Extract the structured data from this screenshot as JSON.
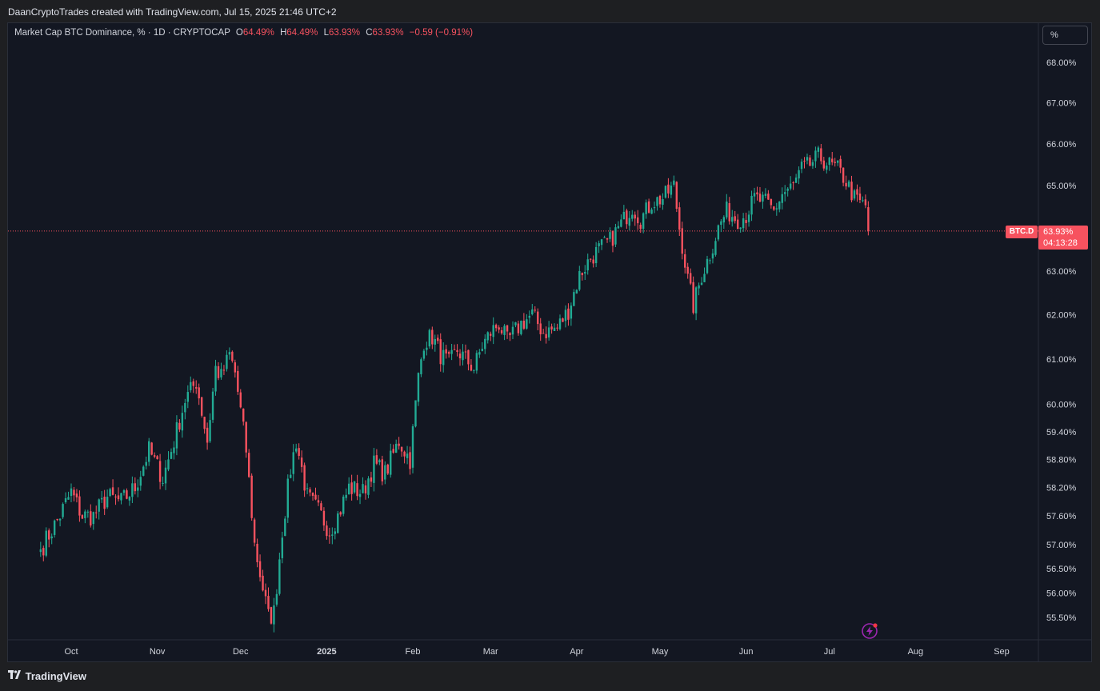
{
  "header": {
    "attribution": "DaanCryptoTrades created with TradingView.com, Jul 15, 2025 21:46 UTC+2"
  },
  "legend": {
    "symbol": "Market Cap BTC Dominance, % · 1D · CRYPTOCAP",
    "open_label": "O",
    "open": "64.49%",
    "high_label": "H",
    "high": "64.49%",
    "low_label": "L",
    "low": "63.93%",
    "close_label": "C",
    "close": "63.93%",
    "change": "−0.59 (−0.91%)"
  },
  "scale_button": "%",
  "price_tag": {
    "symbol": "BTC.D",
    "price": "63.93%",
    "countdown": "04:13:28"
  },
  "footer": {
    "logo_text": "TradingView"
  },
  "colors": {
    "up": "#22ab94",
    "down": "#f7525f",
    "background": "#131722",
    "grid_text": "#d1d4dc"
  },
  "chart_data": {
    "type": "candlestick",
    "title": "Market Cap BTC Dominance, % · 1D · CRYPTOCAP",
    "y_scale": "log",
    "y_ticks": [
      "68.00%",
      "67.00%",
      "66.00%",
      "65.00%",
      "63.00%",
      "62.00%",
      "61.00%",
      "60.00%",
      "59.40%",
      "58.80%",
      "58.20%",
      "57.60%",
      "57.00%",
      "56.50%",
      "56.00%",
      "55.50%"
    ],
    "y_tick_values": [
      68.0,
      67.0,
      66.0,
      65.0,
      63.0,
      62.0,
      61.0,
      60.0,
      59.4,
      58.8,
      58.2,
      57.6,
      57.0,
      56.5,
      56.0,
      55.5
    ],
    "x_ticks": [
      "Oct",
      "Nov",
      "Dec",
      "2025",
      "Feb",
      "Mar",
      "Apr",
      "May",
      "Jun",
      "Jul",
      "Aug",
      "Sep"
    ],
    "x_tick_dates": [
      "2024-10-01",
      "2024-11-01",
      "2024-12-01",
      "2025-01-01",
      "2025-02-01",
      "2025-03-01",
      "2025-04-01",
      "2025-05-01",
      "2025-06-01",
      "2025-07-01",
      "2025-08-01",
      "2025-09-01"
    ],
    "date_range": [
      "2024-09-20",
      "2025-07-15"
    ],
    "last_close": 63.93,
    "close_path": [
      [
        "2024-09-20",
        56.9
      ],
      [
        "2024-09-26",
        57.5
      ],
      [
        "2024-10-01",
        58.1
      ],
      [
        "2024-10-05",
        57.6
      ],
      [
        "2024-10-09",
        57.6
      ],
      [
        "2024-10-14",
        58.0
      ],
      [
        "2024-10-19",
        57.9
      ],
      [
        "2024-10-24",
        58.2
      ],
      [
        "2024-10-29",
        59.0
      ],
      [
        "2024-11-03",
        58.4
      ],
      [
        "2024-11-07",
        59.2
      ],
      [
        "2024-11-11",
        60.1
      ],
      [
        "2024-11-15",
        60.5
      ],
      [
        "2024-11-19",
        59.2
      ],
      [
        "2024-11-22",
        60.8
      ],
      [
        "2024-11-24",
        60.6
      ],
      [
        "2024-11-27",
        61.1
      ],
      [
        "2024-11-29",
        60.7
      ],
      [
        "2024-12-03",
        59.0
      ],
      [
        "2024-12-06",
        57.0
      ],
      [
        "2024-12-09",
        56.1
      ],
      [
        "2024-12-11",
        55.5
      ],
      [
        "2024-12-13",
        55.6
      ],
      [
        "2024-12-16",
        57.3
      ],
      [
        "2024-12-19",
        58.6
      ],
      [
        "2024-12-21",
        59.2
      ],
      [
        "2024-12-25",
        58.0
      ],
      [
        "2024-12-29",
        57.7
      ],
      [
        "2025-01-02",
        57.3
      ],
      [
        "2025-01-05",
        57.6
      ],
      [
        "2025-01-09",
        58.2
      ],
      [
        "2025-01-14",
        58.1
      ],
      [
        "2025-01-18",
        58.7
      ],
      [
        "2025-01-22",
        58.5
      ],
      [
        "2025-01-27",
        59.2
      ],
      [
        "2025-01-31",
        58.8
      ],
      [
        "2025-02-03",
        60.6
      ],
      [
        "2025-02-05",
        61.4
      ],
      [
        "2025-02-08",
        61.5
      ],
      [
        "2025-02-11",
        61.1
      ],
      [
        "2025-02-14",
        60.9
      ],
      [
        "2025-02-17",
        61.2
      ],
      [
        "2025-02-20",
        61.0
      ],
      [
        "2025-02-23",
        60.8
      ],
      [
        "2025-02-26",
        61.3
      ],
      [
        "2025-03-01",
        61.6
      ],
      [
        "2025-03-04",
        61.8
      ],
      [
        "2025-03-07",
        61.4
      ],
      [
        "2025-03-12",
        61.8
      ],
      [
        "2025-03-16",
        62.0
      ],
      [
        "2025-03-20",
        61.6
      ],
      [
        "2025-03-25",
        61.7
      ],
      [
        "2025-03-29",
        62.1
      ],
      [
        "2025-04-02",
        62.9
      ],
      [
        "2025-04-06",
        63.3
      ],
      [
        "2025-04-09",
        63.5
      ],
      [
        "2025-04-13",
        63.7
      ],
      [
        "2025-04-17",
        64.1
      ],
      [
        "2025-04-21",
        64.5
      ],
      [
        "2025-04-24",
        64.2
      ],
      [
        "2025-04-28",
        64.6
      ],
      [
        "2025-05-02",
        64.7
      ],
      [
        "2025-05-06",
        65.0
      ],
      [
        "2025-05-08",
        64.0
      ],
      [
        "2025-05-11",
        62.8
      ],
      [
        "2025-05-13",
        62.2
      ],
      [
        "2025-05-16",
        62.9
      ],
      [
        "2025-05-19",
        63.4
      ],
      [
        "2025-05-22",
        64.0
      ],
      [
        "2025-05-25",
        64.4
      ],
      [
        "2025-05-29",
        64.2
      ],
      [
        "2025-06-01",
        64.3
      ],
      [
        "2025-06-04",
        64.7
      ],
      [
        "2025-06-08",
        64.6
      ],
      [
        "2025-06-11",
        64.4
      ],
      [
        "2025-06-14",
        64.8
      ],
      [
        "2025-06-18",
        65.0
      ],
      [
        "2025-06-21",
        65.4
      ],
      [
        "2025-06-24",
        65.5
      ],
      [
        "2025-06-27",
        65.7
      ],
      [
        "2025-07-01",
        65.5
      ],
      [
        "2025-07-04",
        65.4
      ],
      [
        "2025-07-07",
        65.1
      ],
      [
        "2025-07-10",
        64.7
      ],
      [
        "2025-07-12",
        64.6
      ],
      [
        "2025-07-14",
        64.52
      ],
      [
        "2025-07-15",
        63.93
      ]
    ]
  }
}
